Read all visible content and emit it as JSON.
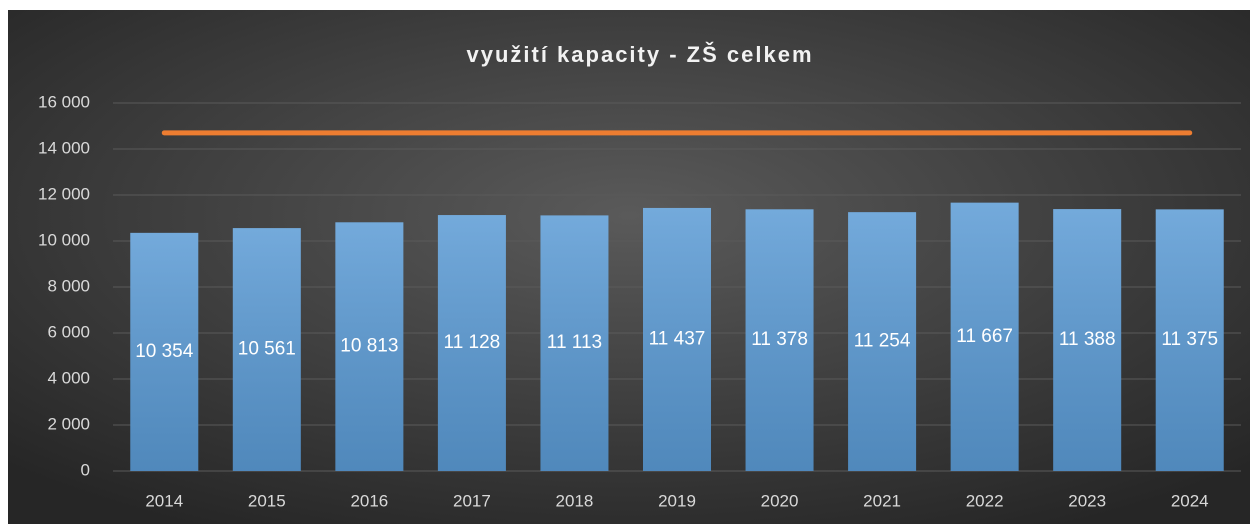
{
  "chart_data": {
    "type": "bar",
    "title": "využití kapacity - ZŠ celkem",
    "categories": [
      "2014",
      "2015",
      "2016",
      "2017",
      "2018",
      "2019",
      "2020",
      "2021",
      "2022",
      "2023",
      "2024"
    ],
    "series": [
      {
        "type": "bar",
        "color": "#5b9bd5",
        "values": [
          10354,
          10561,
          10813,
          11128,
          11113,
          11437,
          11378,
          11254,
          11667,
          11388,
          11375
        ],
        "value_labels": [
          "10 354",
          "10 561",
          "10 813",
          "11 128",
          "11 113",
          "11 437",
          "11 378",
          "11 254",
          "11 667",
          "11 388",
          "11 375"
        ]
      },
      {
        "type": "line",
        "color": "#ed7d31",
        "values": [
          14700,
          14700,
          14700,
          14700,
          14700,
          14700,
          14700,
          14700,
          14700,
          14700,
          14700
        ]
      }
    ],
    "ylim": [
      0,
      16000
    ],
    "yticks": [
      0,
      {
        "value": 2000,
        "label": "2 000"
      },
      {
        "value": 4000,
        "label": "4 000"
      },
      {
        "value": 6000,
        "label": "6 000"
      },
      {
        "value": 8000,
        "label": "8 000"
      },
      {
        "value": 10000,
        "label": "10 000"
      },
      {
        "value": 12000,
        "label": "12 000"
      },
      {
        "value": 14000,
        "label": "14 000"
      },
      {
        "value": 16000,
        "label": "16 000"
      }
    ],
    "grid": true
  }
}
